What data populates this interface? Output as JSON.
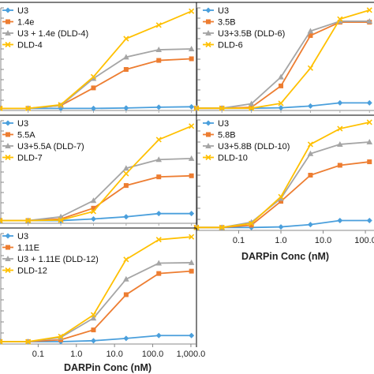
{
  "chart_data": [
    {
      "type": "line",
      "x": [
        0.0,
        0.04,
        0.2,
        1.0,
        5.0,
        25.0,
        125.0
      ],
      "xscale": "log",
      "series": [
        {
          "name": "U3",
          "color": "#4a9fdc",
          "marker": "diamond",
          "values": [
            0.05,
            0.05,
            0.05,
            0.05,
            0.06,
            0.08,
            0.09
          ]
        },
        {
          "name": "1.4e",
          "color": "#ed7d31",
          "marker": "square",
          "values": [
            0.05,
            0.05,
            0.12,
            0.55,
            1.0,
            1.22,
            1.26
          ]
        },
        {
          "name": "U3 + 1.4e (DLD-4)",
          "color": "#a5a5a5",
          "marker": "triangle",
          "values": [
            0.05,
            0.05,
            0.12,
            0.78,
            1.3,
            1.48,
            1.5
          ]
        },
        {
          "name": "DLD-4",
          "color": "#ffc000",
          "marker": "x",
          "values": [
            0.05,
            0.05,
            0.14,
            0.82,
            1.75,
            2.08,
            2.42
          ]
        }
      ],
      "legend": "top-left"
    },
    {
      "type": "line",
      "x": [
        0.0,
        0.04,
        0.2,
        1.0,
        5.0,
        25.0,
        125.0
      ],
      "xscale": "log",
      "series": [
        {
          "name": "U3",
          "color": "#4a9fdc",
          "marker": "diamond",
          "values": [
            0.05,
            0.05,
            0.05,
            0.06,
            0.1,
            0.17,
            0.17
          ]
        },
        {
          "name": "3.5B",
          "color": "#ed7d31",
          "marker": "square",
          "values": [
            0.05,
            0.05,
            0.07,
            0.55,
            1.68,
            1.98,
            1.98
          ]
        },
        {
          "name": "U3+3.5B (DLD-6)",
          "color": "#a5a5a5",
          "marker": "triangle",
          "values": [
            0.05,
            0.05,
            0.15,
            0.75,
            1.78,
            2.0,
            2.0
          ]
        },
        {
          "name": "DLD-6",
          "color": "#ffc000",
          "marker": "x",
          "values": [
            0.05,
            0.05,
            0.05,
            0.16,
            0.95,
            2.05,
            2.25
          ]
        }
      ],
      "legend": "top-left"
    },
    {
      "type": "line",
      "x": [
        0.0,
        0.04,
        0.2,
        1.0,
        5.0,
        25.0,
        125.0
      ],
      "xscale": "log",
      "series": [
        {
          "name": "U3",
          "color": "#4a9fdc",
          "marker": "diamond",
          "values": [
            0.05,
            0.05,
            0.05,
            0.08,
            0.12,
            0.18,
            0.18
          ]
        },
        {
          "name": "5.5A",
          "color": "#ed7d31",
          "marker": "square",
          "values": [
            0.05,
            0.05,
            0.08,
            0.28,
            0.7,
            0.86,
            0.88
          ]
        },
        {
          "name": "U3+5.5A (DLD-7)",
          "color": "#a5a5a5",
          "marker": "triangle",
          "values": [
            0.05,
            0.05,
            0.12,
            0.42,
            1.02,
            1.18,
            1.2
          ]
        },
        {
          "name": "DLD-7",
          "color": "#ffc000",
          "marker": "x",
          "values": [
            0.05,
            0.05,
            0.06,
            0.22,
            0.92,
            1.55,
            1.8
          ]
        }
      ],
      "legend": "top-left"
    },
    {
      "type": "line",
      "x": [
        0.0,
        0.04,
        0.2,
        1.0,
        5.0,
        25.0,
        125.0
      ],
      "xscale": "log",
      "xlabel": "DARPin Conc (nM)",
      "xticklabels": [
        "0.1",
        "1.0",
        "10.0",
        "100.0"
      ],
      "series": [
        {
          "name": "U3",
          "color": "#4a9fdc",
          "marker": "diamond",
          "values": [
            0.05,
            0.05,
            0.05,
            0.06,
            0.1,
            0.17,
            0.17
          ]
        },
        {
          "name": "5.8B",
          "color": "#ed7d31",
          "marker": "square",
          "values": [
            0.05,
            0.05,
            0.09,
            0.5,
            0.95,
            1.12,
            1.18
          ]
        },
        {
          "name": "U3+5.8B (DLD-10)",
          "color": "#a5a5a5",
          "marker": "triangle",
          "values": [
            0.05,
            0.05,
            0.14,
            0.55,
            1.32,
            1.48,
            1.52
          ]
        },
        {
          "name": "DLD-10",
          "color": "#ffc000",
          "marker": "x",
          "values": [
            0.05,
            0.05,
            0.12,
            0.58,
            1.48,
            1.75,
            1.86
          ]
        }
      ],
      "legend": "top-left"
    },
    {
      "type": "line",
      "x": [
        0.0,
        0.04,
        0.2,
        1.0,
        5.0,
        25.0,
        125.0
      ],
      "xscale": "log",
      "xlabel": "DARPin Conc (nM)",
      "xticklabels": [
        "0.1",
        "1.0",
        "10.0",
        "100.0",
        "1,000.0"
      ],
      "series": [
        {
          "name": "U3",
          "color": "#4a9fdc",
          "marker": "diamond",
          "values": [
            0.05,
            0.05,
            0.05,
            0.07,
            0.12,
            0.18,
            0.18
          ]
        },
        {
          "name": "1.11E",
          "color": "#ed7d31",
          "marker": "square",
          "values": [
            0.05,
            0.05,
            0.09,
            0.3,
            1.05,
            1.5,
            1.55
          ]
        },
        {
          "name": "U3 + 1.11E (DLD-12)",
          "color": "#a5a5a5",
          "marker": "triangle",
          "values": [
            0.05,
            0.05,
            0.14,
            0.55,
            1.38,
            1.72,
            1.73
          ]
        },
        {
          "name": "DLD-12",
          "color": "#ffc000",
          "marker": "x",
          "values": [
            0.05,
            0.05,
            0.16,
            0.62,
            1.8,
            2.22,
            2.28
          ]
        }
      ],
      "legend": "top-left"
    }
  ]
}
